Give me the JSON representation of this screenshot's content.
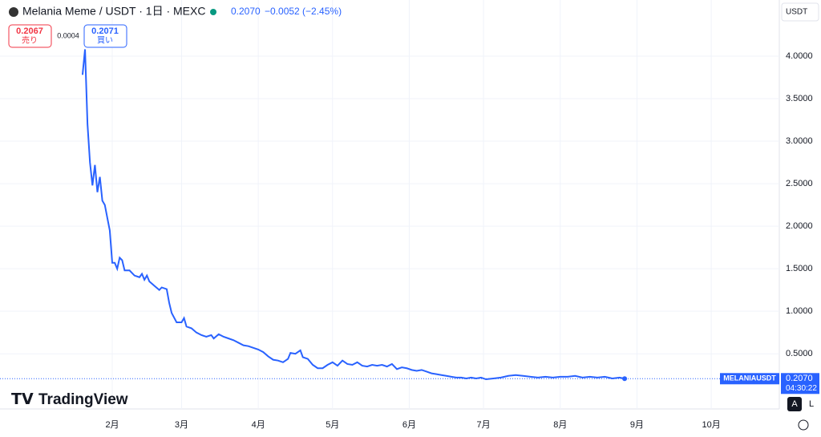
{
  "chart_data": {
    "type": "line",
    "symbol_title": "Melania Meme / USDT · 1日 · MEXC",
    "last_price": {
      "value": 0.207,
      "label": "0.2070"
    },
    "change": "−0.0052 (−2.45%)",
    "sell_price": {
      "value": 0.2067,
      "label": "0.2067"
    },
    "sell_label": "売り",
    "spread": "0.0004",
    "buy_price": {
      "value": 0.2071,
      "label": "0.2071"
    },
    "buy_label": "買い",
    "currency": "USDT",
    "symbol": "MELANIAUSDT",
    "countdown": "04:30:22",
    "logo": "TradingView",
    "auto_button": "A",
    "log_button": "L",
    "x": [
      19,
      20,
      21,
      22,
      23,
      24,
      25,
      26,
      27,
      28,
      29,
      30,
      31,
      32,
      33,
      34,
      35,
      36,
      38,
      40,
      42,
      43,
      44,
      45,
      46,
      48,
      50,
      51,
      53,
      54,
      55,
      57,
      59,
      60,
      61,
      63,
      65,
      67,
      69,
      71,
      72,
      74,
      76,
      78,
      80,
      82,
      84,
      86,
      88,
      90,
      92,
      94,
      96,
      98,
      100,
      102,
      103,
      105,
      107,
      108,
      110,
      112,
      114,
      116,
      118,
      120,
      122,
      124,
      126,
      128,
      130,
      132,
      134,
      136,
      138,
      140,
      142,
      144,
      146,
      148,
      150,
      152,
      154,
      156,
      158,
      160,
      162,
      164,
      166,
      168,
      170,
      172,
      174,
      176,
      178,
      180,
      182,
      185,
      188,
      191,
      194,
      197,
      200,
      203,
      206,
      209,
      212,
      215,
      218,
      221,
      224,
      227,
      230,
      233,
      236,
      238
    ],
    "series": [
      {
        "name": "MELANIAUSDT",
        "color": "#2962ff",
        "values": [
          3.78,
          4.08,
          3.2,
          2.75,
          2.48,
          2.72,
          2.4,
          2.58,
          2.3,
          2.25,
          2.1,
          1.95,
          1.57,
          1.57,
          1.5,
          1.63,
          1.6,
          1.48,
          1.48,
          1.42,
          1.4,
          1.44,
          1.37,
          1.42,
          1.35,
          1.3,
          1.25,
          1.28,
          1.26,
          1.1,
          0.98,
          0.87,
          0.87,
          0.92,
          0.82,
          0.8,
          0.75,
          0.72,
          0.7,
          0.72,
          0.68,
          0.73,
          0.7,
          0.68,
          0.66,
          0.63,
          0.6,
          0.59,
          0.57,
          0.55,
          0.52,
          0.47,
          0.43,
          0.42,
          0.4,
          0.44,
          0.51,
          0.5,
          0.54,
          0.46,
          0.44,
          0.37,
          0.33,
          0.33,
          0.37,
          0.4,
          0.36,
          0.42,
          0.38,
          0.37,
          0.4,
          0.36,
          0.35,
          0.37,
          0.36,
          0.37,
          0.35,
          0.38,
          0.32,
          0.34,
          0.33,
          0.31,
          0.3,
          0.31,
          0.29,
          0.27,
          0.26,
          0.25,
          0.24,
          0.23,
          0.22,
          0.22,
          0.21,
          0.22,
          0.21,
          0.22,
          0.2,
          0.21,
          0.22,
          0.24,
          0.25,
          0.24,
          0.23,
          0.22,
          0.23,
          0.22,
          0.23,
          0.23,
          0.24,
          0.22,
          0.23,
          0.22,
          0.23,
          0.21,
          0.22,
          0.207
        ]
      }
    ],
    "xlim": [
      -14.35,
      300.5
    ],
    "xticks": [
      {
        "value": 31,
        "label": "2月"
      },
      {
        "value": 59,
        "label": "3月"
      },
      {
        "value": 90,
        "label": "4月"
      },
      {
        "value": 120,
        "label": "5月"
      },
      {
        "value": 151,
        "label": "6月"
      },
      {
        "value": 181,
        "label": "7月"
      },
      {
        "value": 212,
        "label": "8月"
      },
      {
        "value": 243,
        "label": "9月"
      },
      {
        "value": 273,
        "label": "10月"
      }
    ],
    "ylim": [
      0.04,
      4.66
    ],
    "yticks": [
      {
        "value": 0.5,
        "label": "0.5000"
      },
      {
        "value": 1,
        "label": "1.0000"
      },
      {
        "value": 1.5,
        "label": "1.5000"
      },
      {
        "value": 2,
        "label": "2.0000"
      },
      {
        "value": 2.5,
        "label": "2.5000"
      },
      {
        "value": 3,
        "label": "3.0000"
      },
      {
        "value": 3.5,
        "label": "3.5000"
      },
      {
        "value": 4,
        "label": "4.0000"
      }
    ],
    "grid": true
  }
}
